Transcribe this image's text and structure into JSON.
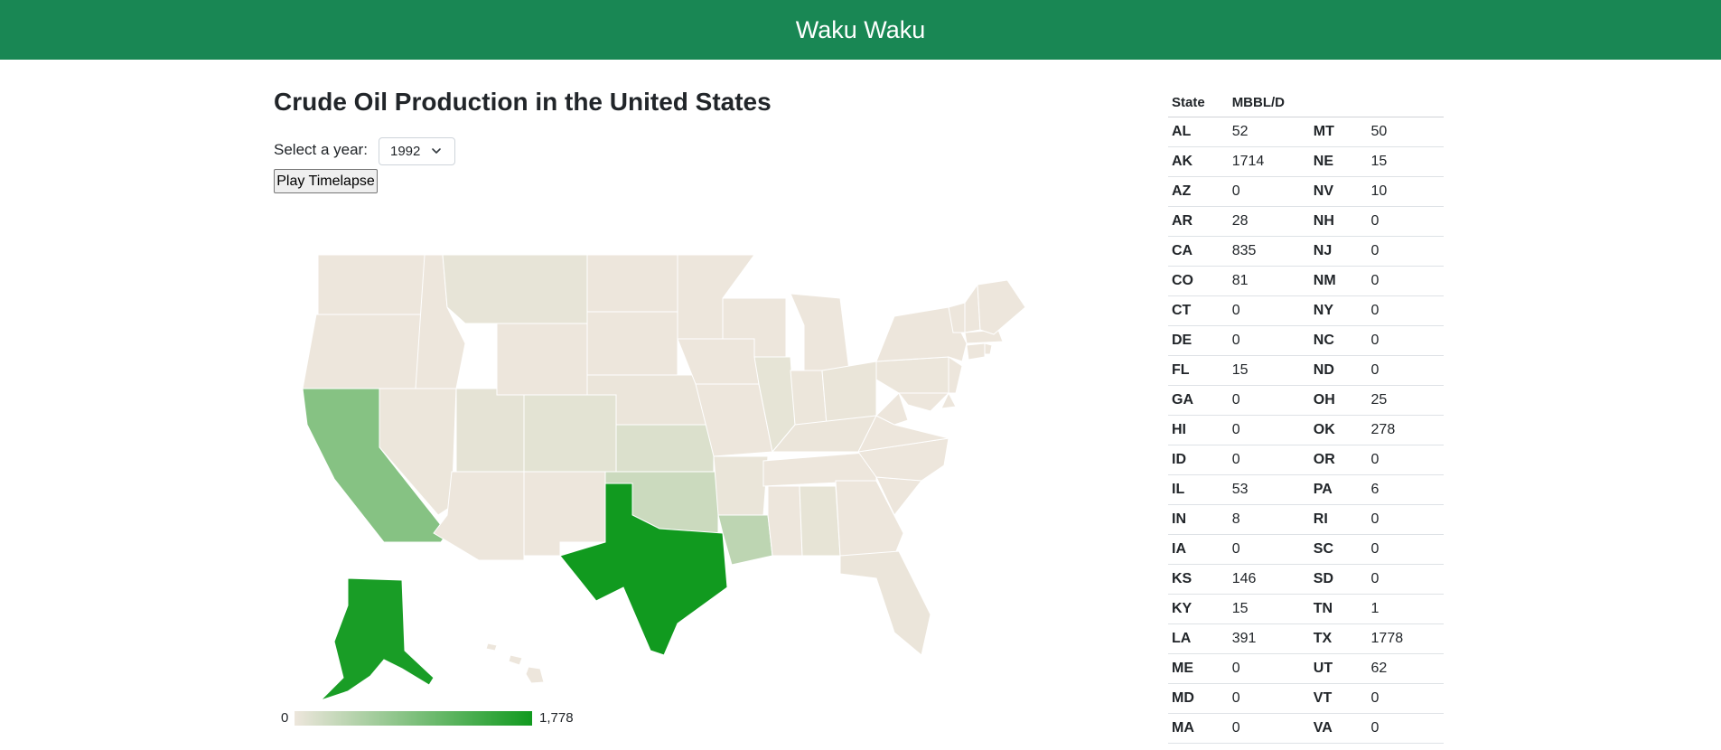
{
  "navbar": {
    "brand": "Waku Waku"
  },
  "page": {
    "title": "Crude Oil Production in the United States",
    "year_label": "Select a year:",
    "selected_year": "1992",
    "play_button": "Play Timelapse"
  },
  "colors": {
    "navbar": "#198754",
    "scale_low": "#ede6dc",
    "scale_high": "#119a1f"
  },
  "legend": {
    "min": "0",
    "max": "1,778"
  },
  "table": {
    "headers": {
      "state": "State",
      "value": "MBBL/D"
    },
    "left": [
      {
        "state": "AL",
        "value": "52"
      },
      {
        "state": "AK",
        "value": "1714"
      },
      {
        "state": "AZ",
        "value": "0"
      },
      {
        "state": "AR",
        "value": "28"
      },
      {
        "state": "CA",
        "value": "835"
      },
      {
        "state": "CO",
        "value": "81"
      },
      {
        "state": "CT",
        "value": "0"
      },
      {
        "state": "DE",
        "value": "0"
      },
      {
        "state": "FL",
        "value": "15"
      },
      {
        "state": "GA",
        "value": "0"
      },
      {
        "state": "HI",
        "value": "0"
      },
      {
        "state": "ID",
        "value": "0"
      },
      {
        "state": "IL",
        "value": "53"
      },
      {
        "state": "IN",
        "value": "8"
      },
      {
        "state": "IA",
        "value": "0"
      },
      {
        "state": "KS",
        "value": "146"
      },
      {
        "state": "KY",
        "value": "15"
      },
      {
        "state": "LA",
        "value": "391"
      },
      {
        "state": "ME",
        "value": "0"
      },
      {
        "state": "MD",
        "value": "0"
      },
      {
        "state": "MA",
        "value": "0"
      }
    ],
    "right": [
      {
        "state": "MT",
        "value": "50"
      },
      {
        "state": "NE",
        "value": "15"
      },
      {
        "state": "NV",
        "value": "10"
      },
      {
        "state": "NH",
        "value": "0"
      },
      {
        "state": "NJ",
        "value": "0"
      },
      {
        "state": "NM",
        "value": "0"
      },
      {
        "state": "NY",
        "value": "0"
      },
      {
        "state": "NC",
        "value": "0"
      },
      {
        "state": "ND",
        "value": "0"
      },
      {
        "state": "OH",
        "value": "25"
      },
      {
        "state": "OK",
        "value": "278"
      },
      {
        "state": "OR",
        "value": "0"
      },
      {
        "state": "PA",
        "value": "6"
      },
      {
        "state": "RI",
        "value": "0"
      },
      {
        "state": "SC",
        "value": "0"
      },
      {
        "state": "SD",
        "value": "0"
      },
      {
        "state": "TN",
        "value": "1"
      },
      {
        "state": "TX",
        "value": "1778"
      },
      {
        "state": "UT",
        "value": "62"
      },
      {
        "state": "VT",
        "value": "0"
      },
      {
        "state": "VA",
        "value": "0"
      }
    ]
  }
}
